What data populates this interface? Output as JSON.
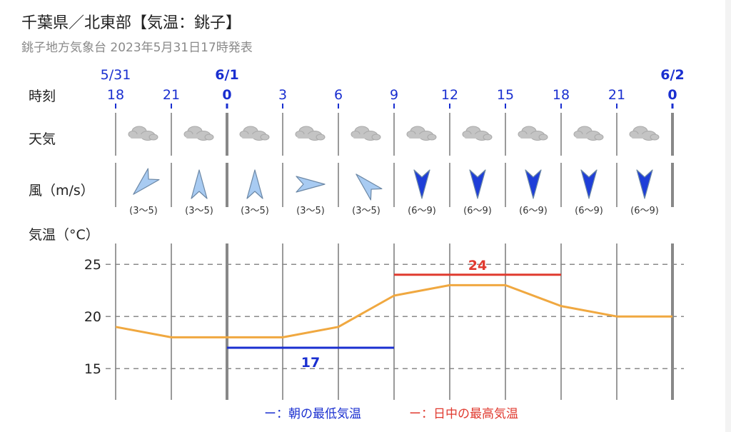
{
  "header": {
    "title": "千葉県／北東部【気温：銚子】",
    "subtitle": "銚子地方気象台 2023年5月31日17時発表"
  },
  "row_labels": {
    "time": "時刻",
    "weather": "天気",
    "wind": "風（m/s）",
    "temp": "気温（°C）"
  },
  "dates": [
    {
      "index": 0,
      "label": "5/31",
      "bold": false
    },
    {
      "index": 2,
      "label": "6/1",
      "bold": true
    },
    {
      "index": 10,
      "label": "6/2",
      "bold": true
    }
  ],
  "hours": [
    "18",
    "21",
    "0",
    "3",
    "6",
    "9",
    "12",
    "15",
    "18",
    "21",
    "0"
  ],
  "bold_hours": [
    2,
    10
  ],
  "weather": [
    "cloudy-icon",
    "cloudy-icon",
    "cloudy-icon",
    "cloudy-icon",
    "cloudy-icon",
    "cloudy-icon",
    "cloudy-icon",
    "cloudy-icon",
    "cloudy-icon",
    "cloudy-icon"
  ],
  "wind": [
    {
      "dir": "SW",
      "speed": "(3〜5)",
      "color": "#a8cbf2"
    },
    {
      "dir": "N",
      "speed": "(3〜5)",
      "color": "#a8cbf2"
    },
    {
      "dir": "N",
      "speed": "(3〜5)",
      "color": "#a8cbf2"
    },
    {
      "dir": "E",
      "speed": "(3〜5)",
      "color": "#a8cbf2"
    },
    {
      "dir": "NW",
      "speed": "(3〜5)",
      "color": "#a8cbf2"
    },
    {
      "dir": "S",
      "speed": "(6〜9)",
      "color": "#1e3ed8"
    },
    {
      "dir": "S",
      "speed": "(6〜9)",
      "color": "#1e3ed8"
    },
    {
      "dir": "S",
      "speed": "(6〜9)",
      "color": "#1e3ed8"
    },
    {
      "dir": "S",
      "speed": "(6〜9)",
      "color": "#1e3ed8"
    },
    {
      "dir": "S",
      "speed": "(6〜9)",
      "color": "#1e3ed8"
    }
  ],
  "chart_data": {
    "type": "line",
    "x": [
      "18",
      "21",
      "0",
      "3",
      "6",
      "9",
      "12",
      "15",
      "18",
      "21",
      "0"
    ],
    "series": [
      {
        "values": [
          19,
          18,
          18,
          18,
          19,
          22,
          23,
          23,
          21,
          20,
          20
        ],
        "color": "#f0a840"
      }
    ],
    "ylim": [
      12,
      27
    ],
    "yticks": [
      15,
      20,
      25
    ],
    "gridlines": "dashed horizontal at ticks",
    "min_temp": {
      "value": 17,
      "label": "17",
      "from_index": 2,
      "to_index": 5,
      "color": "#1a2fd0"
    },
    "max_temp": {
      "value": 24,
      "label": "24",
      "from_index": 5,
      "to_index": 8,
      "color": "#e03a2f"
    },
    "legend": {
      "placement": "bottom-center",
      "items": [
        {
          "marker": "ー",
          "text": "：朝の最低気温",
          "color": "#1a2fd0"
        },
        {
          "marker": "ー",
          "text": "：日中の最高気温",
          "color": "#e03a2f"
        }
      ]
    }
  }
}
